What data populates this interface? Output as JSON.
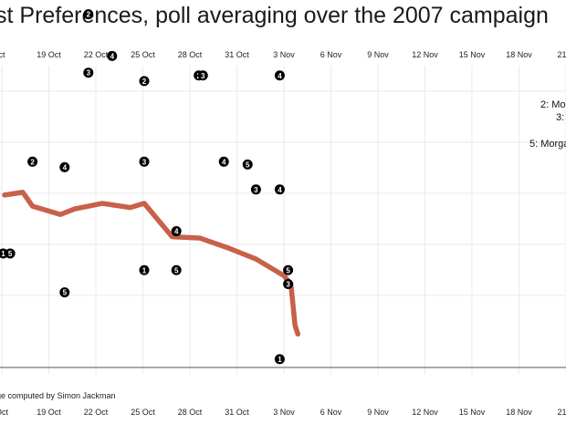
{
  "chart_data": {
    "type": "scatter",
    "title": "st Preferences, poll averaging over the 2007 campaign",
    "credit": "ge computed by Simon Jackman",
    "x_ticks_top": [
      "ct",
      "19 Oct",
      "22 Oct",
      "25 Oct",
      "28 Oct",
      "31 Oct",
      "3 Nov",
      "6 Nov",
      "9 Nov",
      "12 Nov",
      "15 Nov",
      "18 Nov",
      "21 N"
    ],
    "x_ticks_bottom": [
      "Oct",
      "19 Oct",
      "22 Oct",
      "25 Oct",
      "28 Oct",
      "31 Oct",
      "3 Nov",
      "6 Nov",
      "9 Nov",
      "12 Nov",
      "15 Nov",
      "18 Nov",
      "21 N"
    ],
    "legend": [
      "2: Mo",
      "3:",
      "5: Morga"
    ],
    "grid": true,
    "colors": {
      "average_line": "#c8604a",
      "marker": "#000000",
      "gridline": "#eaeaea",
      "baseline": "#555555"
    },
    "series": [
      {
        "type": "line",
        "points": [
          [
            0,
            0.62
          ],
          [
            1.3,
            0.63
          ],
          [
            2,
            0.58
          ],
          [
            4,
            0.55
          ],
          [
            5,
            0.57
          ],
          [
            7,
            0.59
          ],
          [
            9,
            0.575
          ],
          [
            10,
            0.59
          ],
          [
            12,
            0.47
          ],
          [
            14,
            0.465
          ],
          [
            16,
            0.43
          ],
          [
            18,
            0.39
          ],
          [
            19,
            0.36
          ],
          [
            20,
            0.33
          ],
          [
            20.5,
            0.3
          ],
          [
            20.8,
            0.15
          ],
          [
            21,
            0.12
          ]
        ]
      },
      {
        "type": "points",
        "points": [
          {
            "label": "2",
            "x": 10,
            "y": 1.03
          },
          {
            "label": "3",
            "x": 2,
            "y": 1.4
          },
          {
            "label": "2",
            "x": 6,
            "y": 1.27
          },
          {
            "label": "3",
            "x": 6,
            "y": 1.06
          },
          {
            "label": "4",
            "x": 7.7,
            "y": 1.12
          },
          {
            "label": "4",
            "x": 4.3,
            "y": 0.72
          },
          {
            "label": "2",
            "x": 2,
            "y": 0.74
          },
          {
            "label": "3",
            "x": 10,
            "y": 0.74
          },
          {
            "label": "1",
            "x": 10,
            "y": 0.35
          },
          {
            "label": "5",
            "x": 4.3,
            "y": 0.27
          },
          {
            "label": "4",
            "x": 12.3,
            "y": 0.49
          },
          {
            "label": "5",
            "x": 12.3,
            "y": 0.35
          },
          {
            "label": "2",
            "x": 13.9,
            "y": 1.05
          },
          {
            "label": "3",
            "x": 14.2,
            "y": 1.05
          },
          {
            "label": "4",
            "x": 15.7,
            "y": 0.74
          },
          {
            "label": "5",
            "x": 17.4,
            "y": 0.73
          },
          {
            "label": "3",
            "x": 18,
            "y": 0.64
          },
          {
            "label": "4",
            "x": 19.7,
            "y": 1.05
          },
          {
            "label": "4",
            "x": 19.7,
            "y": 0.64
          },
          {
            "label": "1",
            "x": 19.7,
            "y": 0.03
          },
          {
            "label": "5",
            "x": 20.3,
            "y": 0.35
          },
          {
            "label": "3",
            "x": 20.3,
            "y": 0.3
          },
          {
            "label": "5",
            "x": 0.4,
            "y": 0.41
          },
          {
            "label": "1",
            "x": -0.1,
            "y": 0.41
          }
        ]
      }
    ]
  }
}
